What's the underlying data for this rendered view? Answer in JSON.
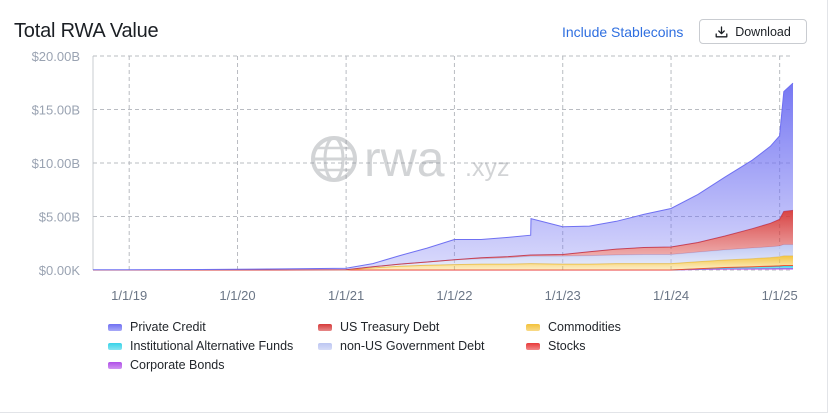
{
  "header": {
    "title": "Total RWA Value",
    "stablecoins_link": "Include Stablecoins",
    "download_label": "Download"
  },
  "icons": {
    "download": "download-icon",
    "watermark_globe": "globe-icon"
  },
  "watermark": {
    "text_main": "rwa",
    "text_suffix": ".xyz"
  },
  "colors": {
    "Private Credit": "#6f70f2",
    "US Treasury Debt": "#d63a3a",
    "Commodities": "#f3c23a",
    "Institutional Alternative Funds": "#37d3e8",
    "non-US Government Debt": "#bcc6f2",
    "Stocks": "#e83a3a",
    "Corporate Bonds": "#b04fe8"
  },
  "legend": [
    {
      "name": "Private Credit",
      "color": "#6f70f2"
    },
    {
      "name": "US Treasury Debt",
      "color": "#d63a3a"
    },
    {
      "name": "Commodities",
      "color": "#f3c23a"
    },
    {
      "name": "Institutional Alternative Funds",
      "color": "#37d3e8"
    },
    {
      "name": "non-US Government Debt",
      "color": "#bcc6f2"
    },
    {
      "name": "Stocks",
      "color": "#e83a3a"
    },
    {
      "name": "Corporate Bonds",
      "color": "#b04fe8"
    }
  ],
  "chart_data": {
    "type": "area",
    "title": "Total RWA Value",
    "xlabel": "",
    "ylabel": "",
    "stacked": true,
    "x_range": [
      "2018-09-01",
      "2025-02-15"
    ],
    "ylim": [
      0,
      20
    ],
    "y_unit": "B",
    "y_ticks": [
      0,
      5,
      10,
      15,
      20
    ],
    "y_tick_labels": [
      "$0.00K",
      "$5.00B",
      "$10.00B",
      "$15.00B",
      "$20.00B"
    ],
    "x_ticks": [
      "2019-01-01",
      "2020-01-01",
      "2021-01-01",
      "2022-01-01",
      "2023-01-01",
      "2024-01-01",
      "2025-01-01"
    ],
    "x_tick_labels": [
      "1/1/19",
      "1/1/20",
      "1/1/21",
      "1/1/22",
      "1/1/23",
      "1/1/24",
      "1/1/25"
    ],
    "grid": true,
    "legend_position": "bottom",
    "x": [
      "2018-09-01",
      "2019-09-01",
      "2020-06-01",
      "2021-01-01",
      "2021-04-01",
      "2021-07-01",
      "2021-10-01",
      "2022-01-01",
      "2022-04-01",
      "2022-07-01",
      "2022-09-15",
      "2022-09-16",
      "2023-01-01",
      "2023-04-01",
      "2023-07-01",
      "2023-10-01",
      "2024-01-01",
      "2024-04-01",
      "2024-07-01",
      "2024-10-01",
      "2024-12-01",
      "2025-01-01",
      "2025-01-15",
      "2025-02-15"
    ],
    "series": [
      {
        "name": "Corporate Bonds",
        "values": [
          0,
          0,
          0,
          0,
          0,
          0,
          0,
          0,
          0,
          0,
          0,
          0,
          0,
          0,
          0,
          0,
          0,
          0.05,
          0.1,
          0.12,
          0.13,
          0.14,
          0.15,
          0.15
        ]
      },
      {
        "name": "Institutional Alternative Funds",
        "values": [
          0,
          0,
          0,
          0,
          0,
          0,
          0,
          0,
          0,
          0,
          0,
          0,
          0,
          0,
          0,
          0,
          0,
          0.05,
          0.1,
          0.15,
          0.18,
          0.2,
          0.22,
          0.22
        ]
      },
      {
        "name": "Stocks",
        "values": [
          0,
          0,
          0,
          0,
          0,
          0,
          0,
          0,
          0,
          0,
          0,
          0,
          0,
          0,
          0,
          0,
          0,
          0.02,
          0.03,
          0.04,
          0.05,
          0.05,
          0.05,
          0.05
        ]
      },
      {
        "name": "Commodities",
        "values": [
          0,
          0,
          0,
          0.01,
          0.2,
          0.35,
          0.45,
          0.5,
          0.55,
          0.55,
          0.6,
          0.6,
          0.55,
          0.55,
          0.6,
          0.6,
          0.6,
          0.65,
          0.7,
          0.75,
          0.8,
          0.85,
          0.9,
          0.9
        ]
      },
      {
        "name": "non-US Government Debt",
        "values": [
          0,
          0,
          0,
          0.01,
          0.1,
          0.2,
          0.3,
          0.45,
          0.5,
          0.6,
          0.7,
          0.7,
          0.75,
          0.8,
          0.8,
          0.85,
          0.85,
          0.9,
          0.95,
          1.0,
          1.0,
          1.0,
          1.05,
          1.05
        ]
      },
      {
        "name": "US Treasury Debt",
        "values": [
          0,
          0,
          0,
          0,
          0,
          0,
          0,
          0,
          0.1,
          0.1,
          0.1,
          0.1,
          0.15,
          0.35,
          0.55,
          0.65,
          0.7,
          0.9,
          1.3,
          1.8,
          2.2,
          2.5,
          3.1,
          3.2
        ]
      },
      {
        "name": "Private Credit",
        "values": [
          0.02,
          0.05,
          0.1,
          0.15,
          0.3,
          0.8,
          1.3,
          1.9,
          1.7,
          1.8,
          1.85,
          3.4,
          2.6,
          2.4,
          2.6,
          3.1,
          3.6,
          4.5,
          5.5,
          6.4,
          7.2,
          7.8,
          11.2,
          11.9
        ]
      }
    ]
  }
}
